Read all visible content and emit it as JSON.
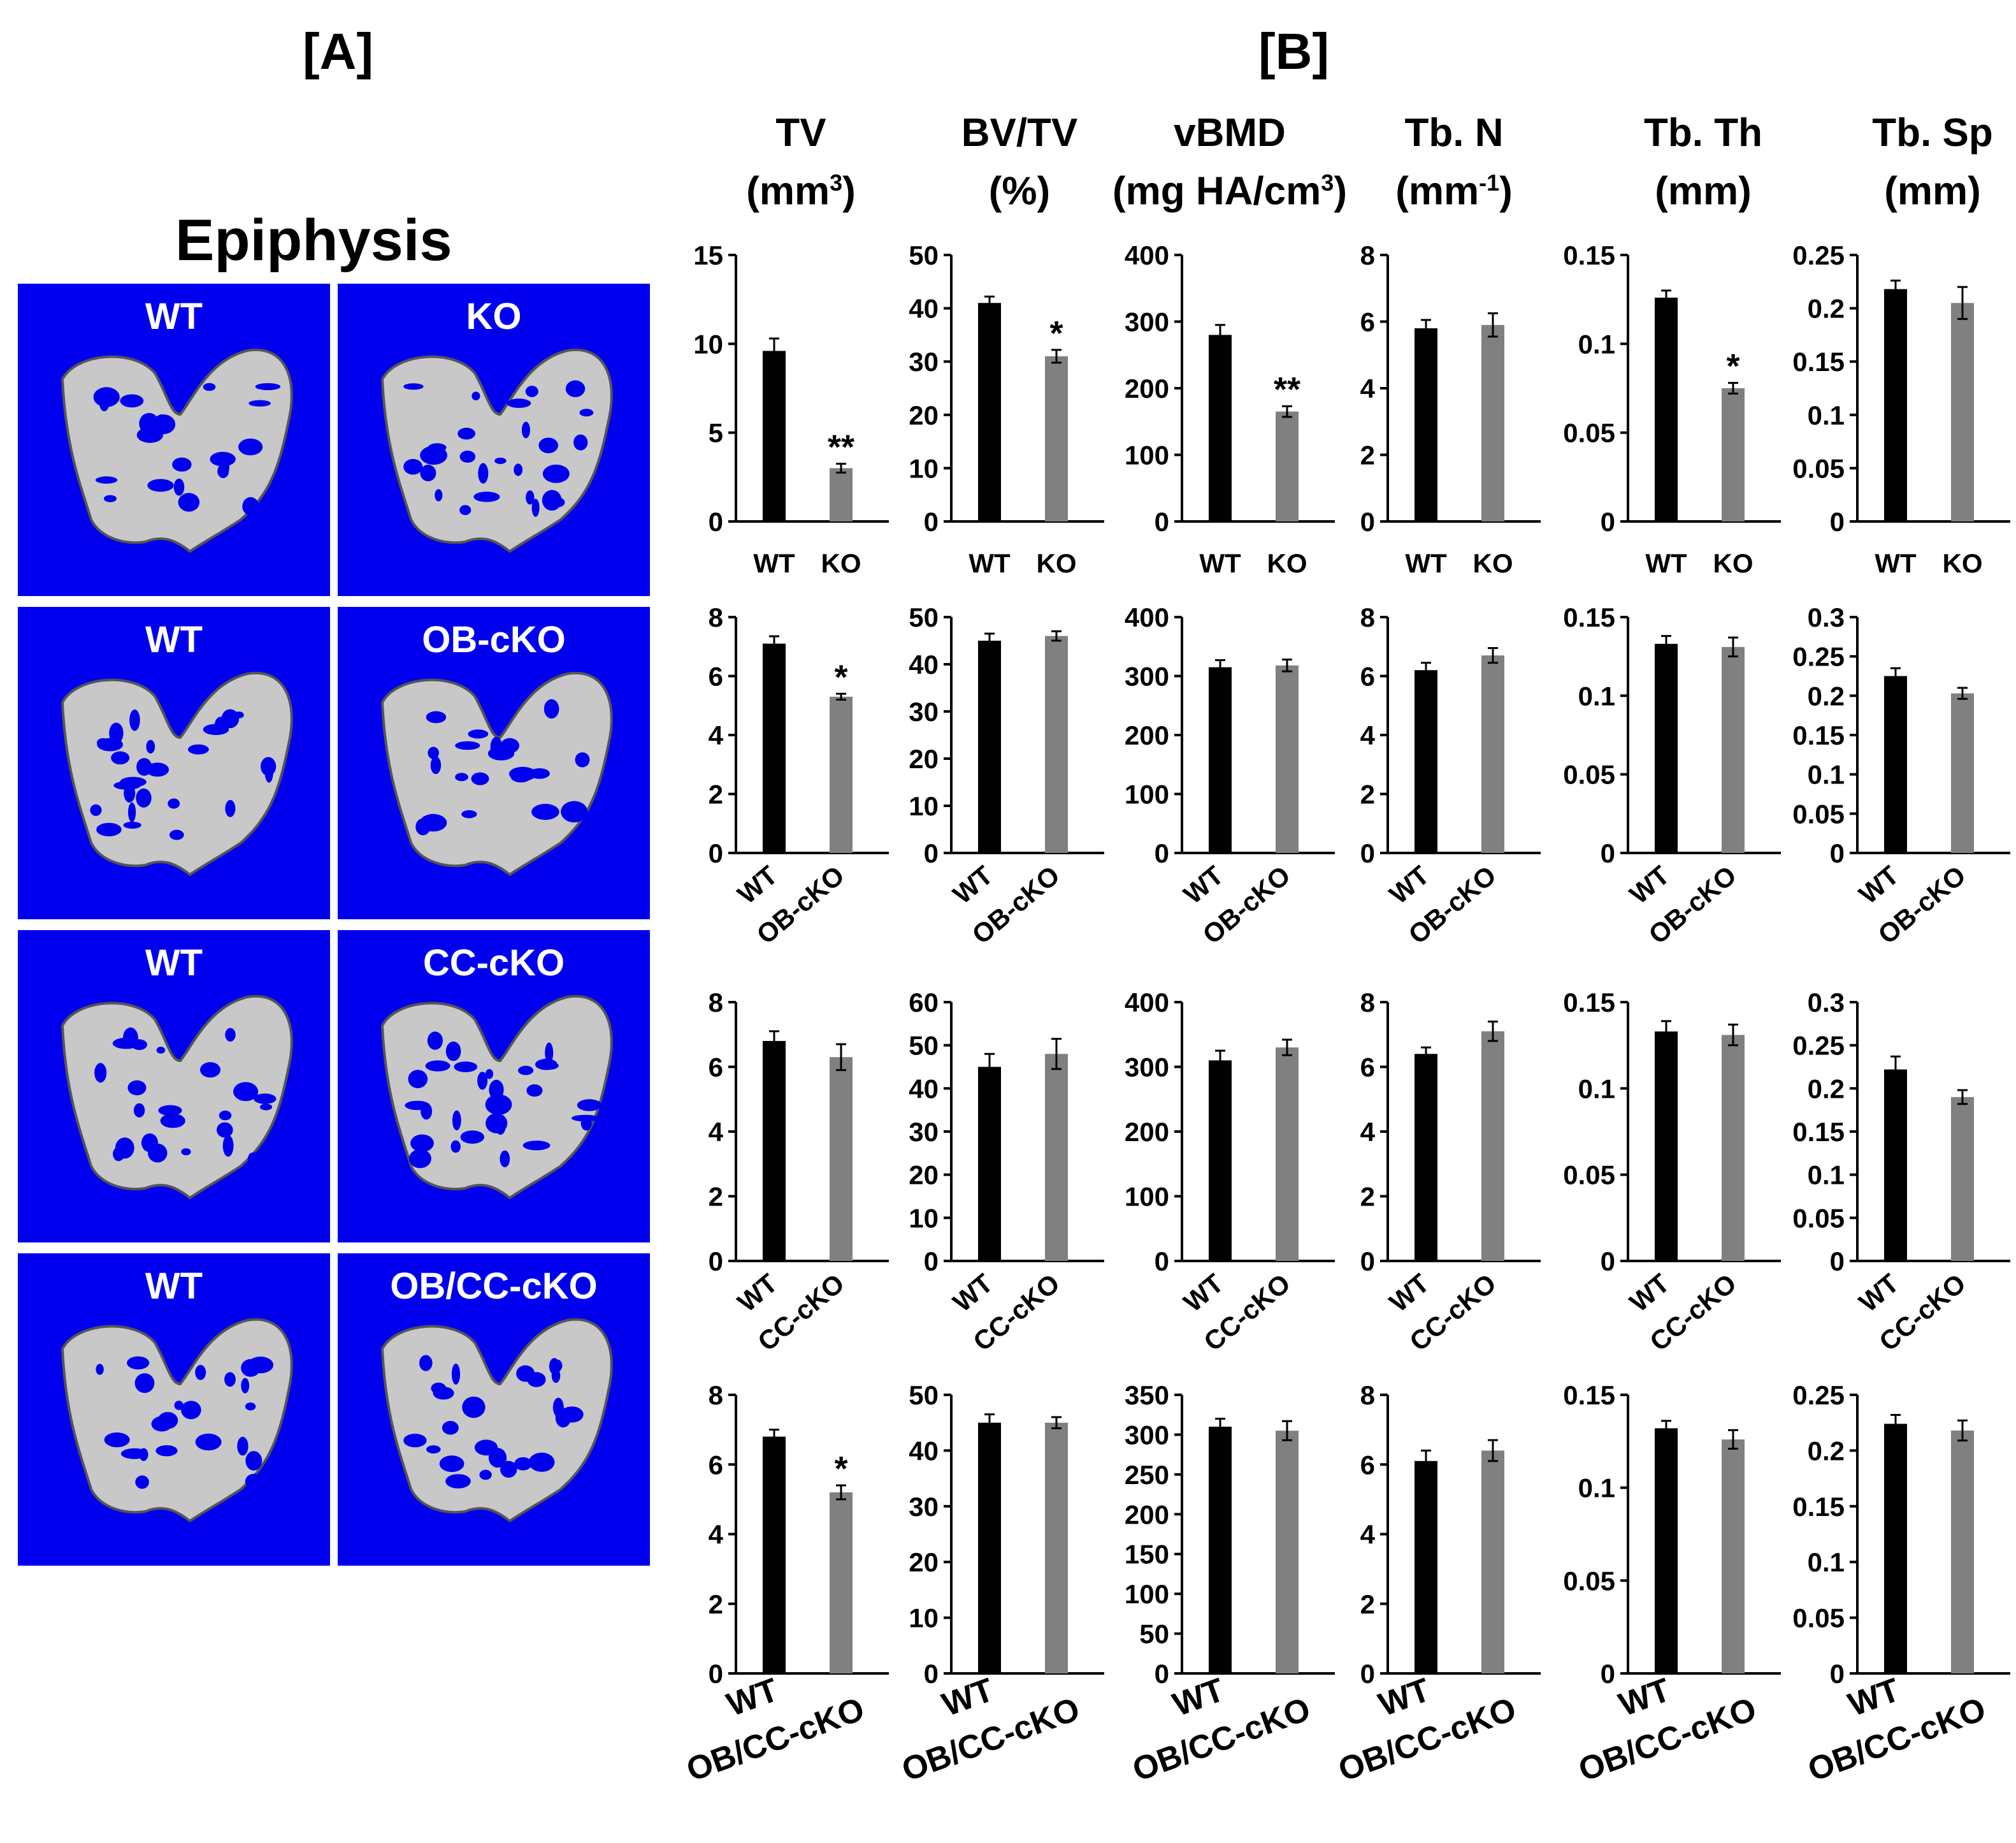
{
  "panel_a": {
    "label": "[A]",
    "title": "Epiphysis",
    "scans": [
      {
        "left": "WT",
        "right": "KO"
      },
      {
        "left": "WT",
        "right": "OB-cKO"
      },
      {
        "left": "WT",
        "right": "CC-cKO"
      },
      {
        "left": "WT",
        "right": "OB/CC-cKO"
      }
    ]
  },
  "panel_b": {
    "label": "[B]",
    "columns": [
      {
        "name": "TV",
        "unit_pre": "(mm",
        "unit_sup": "3",
        "unit_post": ")"
      },
      {
        "name": "BV/TV",
        "unit_pre": "(%)",
        "unit_sup": "",
        "unit_post": ""
      },
      {
        "name": "vBMD",
        "unit_pre": "(mg HA/cm",
        "unit_sup": "3",
        "unit_post": ")"
      },
      {
        "name": "Tb. N",
        "unit_pre": "(mm",
        "unit_sup": "-1",
        "unit_post": ")"
      },
      {
        "name": "Tb. Th",
        "unit_pre": "(mm)",
        "unit_sup": "",
        "unit_post": ""
      },
      {
        "name": "Tb. Sp",
        "unit_pre": "(mm)",
        "unit_sup": "",
        "unit_post": ""
      }
    ]
  },
  "colors": {
    "wt_bar": "#000000",
    "ko_bar": "#808080",
    "scan_bg": "#0000ee",
    "bone": "#c8c8c8"
  },
  "chart_data": [
    {
      "type": "bar",
      "row": 1,
      "column": "TV",
      "categories": [
        "WT",
        "KO"
      ],
      "values": [
        9.6,
        3.0
      ],
      "errors": [
        0.7,
        0.25
      ],
      "ylim": [
        0,
        15
      ],
      "yticks": [
        0,
        5,
        10,
        15
      ],
      "ytick_labels": [
        "0",
        "5",
        "10",
        "15"
      ],
      "significance": [
        "",
        "**"
      ]
    },
    {
      "type": "bar",
      "row": 1,
      "column": "BV/TV",
      "categories": [
        "WT",
        "KO"
      ],
      "values": [
        41,
        31
      ],
      "errors": [
        1.2,
        1.2
      ],
      "ylim": [
        0,
        50
      ],
      "yticks": [
        0,
        10,
        20,
        30,
        40,
        50
      ],
      "ytick_labels": [
        "0",
        "10",
        "20",
        "30",
        "40",
        "50"
      ],
      "significance": [
        "",
        "*"
      ]
    },
    {
      "type": "bar",
      "row": 1,
      "column": "vBMD",
      "categories": [
        "WT",
        "KO"
      ],
      "values": [
        280,
        165
      ],
      "errors": [
        15,
        8
      ],
      "ylim": [
        0,
        400
      ],
      "yticks": [
        0,
        100,
        200,
        300,
        400
      ],
      "ytick_labels": [
        "0",
        "100",
        "200",
        "300",
        "400"
      ],
      "significance": [
        "",
        "**"
      ]
    },
    {
      "type": "bar",
      "row": 1,
      "column": "Tb. N",
      "categories": [
        "WT",
        "KO"
      ],
      "values": [
        5.8,
        5.9
      ],
      "errors": [
        0.25,
        0.35
      ],
      "ylim": [
        0,
        8
      ],
      "yticks": [
        0,
        2,
        4,
        6,
        8
      ],
      "ytick_labels": [
        "0",
        "2",
        "4",
        "6",
        "8"
      ],
      "significance": [
        "",
        ""
      ]
    },
    {
      "type": "bar",
      "row": 1,
      "column": "Tb. Th",
      "categories": [
        "WT",
        "KO"
      ],
      "values": [
        0.126,
        0.075
      ],
      "errors": [
        0.004,
        0.003
      ],
      "ylim": [
        0,
        0.15
      ],
      "yticks": [
        0,
        0.05,
        0.1,
        0.15
      ],
      "ytick_labels": [
        "0",
        "0.05",
        "0.1",
        "0.15"
      ],
      "significance": [
        "",
        "*"
      ]
    },
    {
      "type": "bar",
      "row": 1,
      "column": "Tb. Sp",
      "categories": [
        "WT",
        "KO"
      ],
      "values": [
        0.218,
        0.205
      ],
      "errors": [
        0.008,
        0.015
      ],
      "ylim": [
        0,
        0.25
      ],
      "yticks": [
        0,
        0.05,
        0.1,
        0.15,
        0.2,
        0.25
      ],
      "ytick_labels": [
        "0",
        "0.05",
        "0.1",
        "0.15",
        "0.2",
        "0.25"
      ],
      "significance": [
        "",
        ""
      ]
    },
    {
      "type": "bar",
      "row": 2,
      "column": "TV",
      "categories": [
        "WT",
        "OB-cKO"
      ],
      "values": [
        7.1,
        5.3
      ],
      "errors": [
        0.25,
        0.1
      ],
      "ylim": [
        0,
        8
      ],
      "yticks": [
        0,
        2,
        4,
        6,
        8
      ],
      "ytick_labels": [
        "0",
        "2",
        "4",
        "6",
        "8"
      ],
      "significance": [
        "",
        "*"
      ]
    },
    {
      "type": "bar",
      "row": 2,
      "column": "BV/TV",
      "categories": [
        "WT",
        "OB-cKO"
      ],
      "values": [
        45,
        46
      ],
      "errors": [
        1.5,
        1
      ],
      "ylim": [
        0,
        50
      ],
      "yticks": [
        0,
        10,
        20,
        30,
        40,
        50
      ],
      "ytick_labels": [
        "0",
        "10",
        "20",
        "30",
        "40",
        "50"
      ],
      "significance": [
        "",
        ""
      ]
    },
    {
      "type": "bar",
      "row": 2,
      "column": "vBMD",
      "categories": [
        "WT",
        "OB-cKO"
      ],
      "values": [
        315,
        318
      ],
      "errors": [
        12,
        10
      ],
      "ylim": [
        0,
        400
      ],
      "yticks": [
        0,
        100,
        200,
        300,
        400
      ],
      "ytick_labels": [
        "0",
        "100",
        "200",
        "300",
        "400"
      ],
      "significance": [
        "",
        ""
      ]
    },
    {
      "type": "bar",
      "row": 2,
      "column": "Tb. N",
      "categories": [
        "WT",
        "OB-cKO"
      ],
      "values": [
        6.2,
        6.7
      ],
      "errors": [
        0.25,
        0.25
      ],
      "ylim": [
        0,
        8
      ],
      "yticks": [
        0,
        2,
        4,
        6,
        8
      ],
      "ytick_labels": [
        "0",
        "2",
        "4",
        "6",
        "8"
      ],
      "significance": [
        "",
        ""
      ]
    },
    {
      "type": "bar",
      "row": 2,
      "column": "Tb. Th",
      "categories": [
        "WT",
        "OB-cKO"
      ],
      "values": [
        0.133,
        0.131
      ],
      "errors": [
        0.005,
        0.006
      ],
      "ylim": [
        0,
        0.15
      ],
      "yticks": [
        0,
        0.05,
        0.1,
        0.15
      ],
      "ytick_labels": [
        "0",
        "0.05",
        "0.1",
        "0.15"
      ],
      "significance": [
        "",
        ""
      ]
    },
    {
      "type": "bar",
      "row": 2,
      "column": "Tb. Sp",
      "categories": [
        "WT",
        "OB-cKO"
      ],
      "values": [
        0.225,
        0.203
      ],
      "errors": [
        0.01,
        0.007
      ],
      "ylim": [
        0,
        0.3
      ],
      "yticks": [
        0,
        0.05,
        0.1,
        0.15,
        0.2,
        0.25,
        0.3
      ],
      "ytick_labels": [
        "0",
        "0.05",
        "0.1",
        "0.15",
        "0.2",
        "0.25",
        "0.3"
      ],
      "significance": [
        "",
        ""
      ]
    },
    {
      "type": "bar",
      "row": 3,
      "column": "TV",
      "categories": [
        "WT",
        "CC-cKO"
      ],
      "values": [
        6.8,
        6.3
      ],
      "errors": [
        0.3,
        0.4
      ],
      "ylim": [
        0,
        8
      ],
      "yticks": [
        0,
        2,
        4,
        6,
        8
      ],
      "ytick_labels": [
        "0",
        "2",
        "4",
        "6",
        "8"
      ],
      "significance": [
        "",
        ""
      ]
    },
    {
      "type": "bar",
      "row": 3,
      "column": "BV/TV",
      "categories": [
        "WT",
        "CC-cKO"
      ],
      "values": [
        45,
        48
      ],
      "errors": [
        3,
        3.5
      ],
      "ylim": [
        0,
        60
      ],
      "yticks": [
        0,
        10,
        20,
        30,
        40,
        50,
        60
      ],
      "ytick_labels": [
        "0",
        "10",
        "20",
        "30",
        "40",
        "50",
        "60"
      ],
      "significance": [
        "",
        ""
      ]
    },
    {
      "type": "bar",
      "row": 3,
      "column": "vBMD",
      "categories": [
        "WT",
        "CC-cKO"
      ],
      "values": [
        310,
        330
      ],
      "errors": [
        15,
        12
      ],
      "ylim": [
        0,
        400
      ],
      "yticks": [
        0,
        100,
        200,
        300,
        400
      ],
      "ytick_labels": [
        "0",
        "100",
        "200",
        "300",
        "400"
      ],
      "significance": [
        "",
        ""
      ]
    },
    {
      "type": "bar",
      "row": 3,
      "column": "Tb. N",
      "categories": [
        "WT",
        "CC-cKO"
      ],
      "values": [
        6.4,
        7.1
      ],
      "errors": [
        0.2,
        0.3
      ],
      "ylim": [
        0,
        8
      ],
      "yticks": [
        0,
        2,
        4,
        6,
        8
      ],
      "ytick_labels": [
        "0",
        "2",
        "4",
        "6",
        "8"
      ],
      "significance": [
        "",
        ""
      ]
    },
    {
      "type": "bar",
      "row": 3,
      "column": "Tb. Th",
      "categories": [
        "WT",
        "CC-cKO"
      ],
      "values": [
        0.133,
        0.131
      ],
      "errors": [
        0.006,
        0.006
      ],
      "ylim": [
        0,
        0.15
      ],
      "yticks": [
        0,
        0.05,
        0.1,
        0.15
      ],
      "ytick_labels": [
        "0",
        "0.05",
        "0.1",
        "0.15"
      ],
      "significance": [
        "",
        ""
      ]
    },
    {
      "type": "bar",
      "row": 3,
      "column": "Tb. Sp",
      "categories": [
        "WT",
        "CC-cKO"
      ],
      "values": [
        0.222,
        0.19
      ],
      "errors": [
        0.015,
        0.008
      ],
      "ylim": [
        0,
        0.3
      ],
      "yticks": [
        0,
        0.05,
        0.1,
        0.15,
        0.2,
        0.25,
        0.3
      ],
      "ytick_labels": [
        "0",
        "0.05",
        "0.1",
        "0.15",
        "0.2",
        "0.25",
        "0.3"
      ],
      "significance": [
        "",
        ""
      ]
    },
    {
      "type": "bar",
      "row": 4,
      "column": "TV",
      "categories": [
        "WT",
        "OB/CC-cKO"
      ],
      "values": [
        6.8,
        5.2
      ],
      "errors": [
        0.2,
        0.2
      ],
      "ylim": [
        0,
        8
      ],
      "yticks": [
        0,
        2,
        4,
        6,
        8
      ],
      "ytick_labels": [
        "0",
        "2",
        "4",
        "6",
        "8"
      ],
      "significance": [
        "",
        "*"
      ]
    },
    {
      "type": "bar",
      "row": 4,
      "column": "BV/TV",
      "categories": [
        "WT",
        "OB/CC-cKO"
      ],
      "values": [
        45,
        45
      ],
      "errors": [
        1.5,
        1
      ],
      "ylim": [
        0,
        50
      ],
      "yticks": [
        0,
        10,
        20,
        30,
        40,
        50
      ],
      "ytick_labels": [
        "0",
        "10",
        "20",
        "30",
        "40",
        "50"
      ],
      "significance": [
        "",
        ""
      ]
    },
    {
      "type": "bar",
      "row": 4,
      "column": "vBMD",
      "categories": [
        "WT",
        "OB/CC-cKO"
      ],
      "values": [
        310,
        305
      ],
      "errors": [
        10,
        12
      ],
      "ylim": [
        0,
        350
      ],
      "yticks": [
        0,
        50,
        100,
        150,
        200,
        250,
        300,
        350
      ],
      "ytick_labels": [
        "0",
        "50",
        "100",
        "150",
        "200",
        "250",
        "300",
        "350"
      ],
      "significance": [
        "",
        ""
      ]
    },
    {
      "type": "bar",
      "row": 4,
      "column": "Tb. N",
      "categories": [
        "WT",
        "OB/CC-cKO"
      ],
      "values": [
        6.1,
        6.4
      ],
      "errors": [
        0.3,
        0.3
      ],
      "ylim": [
        0,
        8
      ],
      "yticks": [
        0,
        2,
        4,
        6,
        8
      ],
      "ytick_labels": [
        "0",
        "2",
        "4",
        "6",
        "8"
      ],
      "significance": [
        "",
        ""
      ]
    },
    {
      "type": "bar",
      "row": 4,
      "column": "Tb. Th",
      "categories": [
        "WT",
        "OB/CC-cKO"
      ],
      "values": [
        0.132,
        0.126
      ],
      "errors": [
        0.004,
        0.005
      ],
      "ylim": [
        0,
        0.15
      ],
      "yticks": [
        0,
        0.05,
        0.1,
        0.15
      ],
      "ytick_labels": [
        "0",
        "0.05",
        "0.1",
        "0.15"
      ],
      "significance": [
        "",
        ""
      ]
    },
    {
      "type": "bar",
      "row": 4,
      "column": "Tb. Sp",
      "categories": [
        "WT",
        "OB/CC-cKO"
      ],
      "values": [
        0.224,
        0.218
      ],
      "errors": [
        0.008,
        0.009
      ],
      "ylim": [
        0,
        0.25
      ],
      "yticks": [
        0,
        0.05,
        0.1,
        0.15,
        0.2,
        0.25
      ],
      "ytick_labels": [
        "0",
        "0.05",
        "0.1",
        "0.15",
        "0.2",
        "0.25"
      ],
      "significance": [
        "",
        ""
      ]
    }
  ]
}
